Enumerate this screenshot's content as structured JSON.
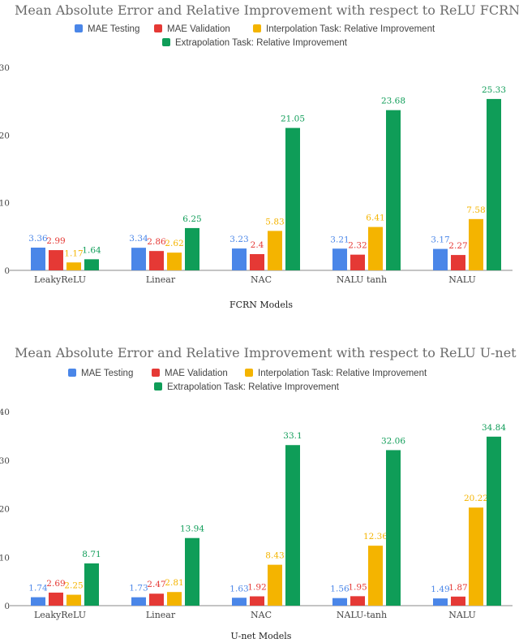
{
  "colors": {
    "mae_testing": "#4a86e8",
    "mae_validation": "#e53935",
    "interpolation": "#f4b400",
    "extrapolation": "#0f9d58"
  },
  "legend_labels": [
    "MAE Testing",
    "MAE Validation",
    "Interpolation Task: Relative Improvement",
    "Extrapolation Task:  Relative Improvement"
  ],
  "chart_data": [
    {
      "type": "bar",
      "title": "Mean Absolute Error and Relative Improvement with respect to ReLU FCRN",
      "xlabel": "FCRN Models",
      "ylabel": "",
      "ylim": [
        0,
        30
      ],
      "yticks": [
        "0",
        "10",
        "20",
        "30"
      ],
      "categories": [
        "LeakyReLU",
        "Linear",
        "NAC",
        "NALU tanh",
        "NALU"
      ],
      "series": [
        {
          "name": "MAE Testing",
          "values": [
            3.36,
            3.34,
            3.23,
            3.21,
            3.17
          ],
          "labels": [
            "3.36",
            "3.34",
            "3.23",
            "3.21",
            "3.17"
          ]
        },
        {
          "name": "MAE Validation",
          "values": [
            2.99,
            2.86,
            2.4,
            2.32,
            2.27
          ],
          "labels": [
            "2.99",
            "2.86",
            "2.4",
            "2.32",
            "2.27"
          ]
        },
        {
          "name": "Interpolation Task: Relative Improvement",
          "values": [
            1.17,
            2.62,
            5.83,
            6.41,
            7.58
          ],
          "labels": [
            "1.17",
            "2.62",
            "5.83",
            "6.41",
            "7.58"
          ]
        },
        {
          "name": "Extrapolation Task:  Relative Improvement",
          "values": [
            1.64,
            6.25,
            21.05,
            23.68,
            25.33
          ],
          "labels": [
            "1.64",
            "6.25",
            "21.05",
            "23.68",
            "25.33"
          ]
        }
      ]
    },
    {
      "type": "bar",
      "title": "Mean Absolute Error and Relative Improvement with respect to ReLU U-net",
      "xlabel": "U-net Models",
      "ylabel": "",
      "ylim": [
        0,
        40
      ],
      "yticks": [
        "0",
        "10",
        "20",
        "30",
        "40"
      ],
      "categories": [
        "LeakyReLU",
        "Linear",
        "NAC",
        "NALU-tanh",
        "NALU"
      ],
      "series": [
        {
          "name": "MAE Testing",
          "values": [
            1.74,
            1.73,
            1.63,
            1.56,
            1.49
          ],
          "labels": [
            "1.74",
            "1.73",
            "1.63",
            "1.56",
            "1.49"
          ]
        },
        {
          "name": "MAE Validation",
          "values": [
            2.69,
            2.47,
            1.92,
            1.95,
            1.87
          ],
          "labels": [
            "2.69",
            "2.47",
            "1.92",
            "1.95",
            "1.87"
          ]
        },
        {
          "name": "Interpolation Task: Relative Improvement",
          "values": [
            2.25,
            2.81,
            8.43,
            12.36,
            20.22
          ],
          "labels": [
            "2.25",
            "2.81",
            "8.43",
            "12.36",
            "20.22"
          ]
        },
        {
          "name": "Extrapolation Task:  Relative Improvement",
          "values": [
            8.71,
            13.94,
            33.1,
            32.06,
            34.84
          ],
          "labels": [
            "8.71",
            "13.94",
            "33.1",
            "32.06",
            "34.84"
          ]
        }
      ]
    }
  ]
}
